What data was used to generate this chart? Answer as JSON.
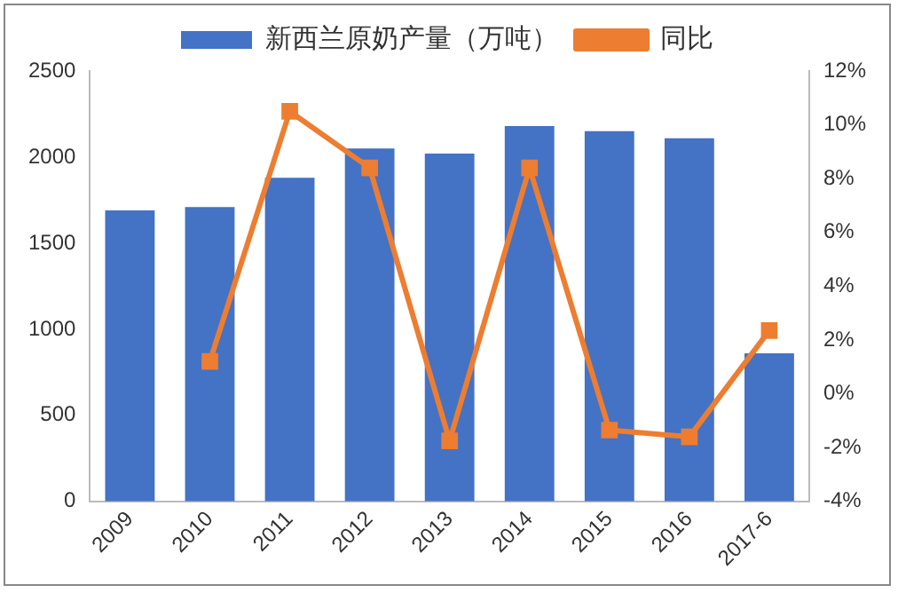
{
  "chart_data": {
    "type": "bar",
    "categories": [
      "2009",
      "2010",
      "2011",
      "2012",
      "2013",
      "2014",
      "2015",
      "2016",
      "2017-6"
    ],
    "series": [
      {
        "name": "新西兰原奶产量（万吨）",
        "color": "#4472c4",
        "values": [
          1690,
          1710,
          1880,
          2050,
          2020,
          2180,
          2150,
          2110,
          860
        ]
      },
      {
        "name": "同比",
        "type": "line",
        "axis": "y2",
        "color": "#ed7d31",
        "values": [
          null,
          1.2,
          10.5,
          8.4,
          -1.75,
          8.4,
          -1.35,
          -1.6,
          2.35
        ]
      }
    ],
    "ylim": [
      0,
      2500
    ],
    "yticks": [
      0,
      500,
      1000,
      1500,
      2000,
      2500
    ],
    "y2lim": [
      -4,
      12
    ],
    "y2ticks": [
      {
        "value": -4,
        "label": "-4%"
      },
      {
        "value": -2,
        "label": "-2%"
      },
      {
        "value": 0,
        "label": "0%"
      },
      {
        "value": 2,
        "label": "2%"
      },
      {
        "value": 4,
        "label": "4%"
      },
      {
        "value": 6,
        "label": "6%"
      },
      {
        "value": 8,
        "label": "8%"
      },
      {
        "value": 10,
        "label": "10%"
      },
      {
        "value": 12,
        "label": "12%"
      }
    ],
    "legend": "top",
    "marker": "square",
    "grid": false
  }
}
